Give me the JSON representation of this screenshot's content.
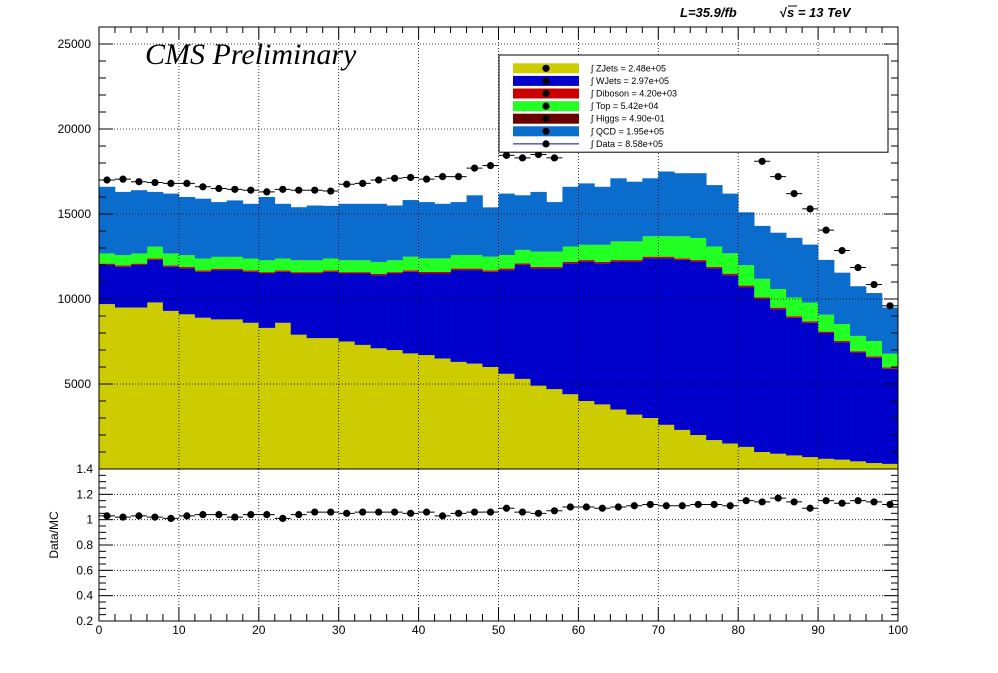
{
  "header": {
    "lumi_label": "L=35.9/fb",
    "sqrt_symbol": "√",
    "energy_label": "s = 13 TeV",
    "cms_label": "CMS Preliminary"
  },
  "colors": {
    "ZJets": "#cccc00",
    "WJets": "#0000cc",
    "Diboson": "#cc0000",
    "Top": "#22ff22",
    "Higgs": "#6b0000",
    "QCD": "#0a6ccc",
    "Data": "#000000"
  },
  "legend": [
    {
      "key": "ZJets",
      "label": "∫ ZJets = 2.48e+05"
    },
    {
      "key": "WJets",
      "label": "∫ WJets = 2.97e+05"
    },
    {
      "key": "Diboson",
      "label": "∫ Diboson = 4.20e+03"
    },
    {
      "key": "Top",
      "label": "∫ Top = 5.42e+04"
    },
    {
      "key": "Higgs",
      "label": "∫ Higgs = 4.90e-01"
    },
    {
      "key": "QCD",
      "label": "∫ QCD = 1.95e+05"
    },
    {
      "key": "Data",
      "label": "∫ Data = 8.58e+05"
    }
  ],
  "chart_data": [
    {
      "type": "bar",
      "stacked": true,
      "ylim": [
        0,
        26000
      ],
      "xlim": [
        0,
        100
      ],
      "yticks": [
        "5000",
        "10000",
        "15000",
        "20000",
        "25000"
      ],
      "grid": true,
      "legend_position": "top-right",
      "bin_width": 2,
      "x": [
        1,
        3,
        5,
        7,
        9,
        11,
        13,
        15,
        17,
        19,
        21,
        23,
        25,
        27,
        29,
        31,
        33,
        35,
        37,
        39,
        41,
        43,
        45,
        47,
        49,
        51,
        53,
        55,
        57,
        59,
        61,
        63,
        65,
        67,
        69,
        71,
        73,
        75,
        77,
        79,
        81,
        83,
        85,
        87,
        89,
        91,
        93,
        95,
        97,
        99
      ],
      "series": [
        {
          "name": "ZJets",
          "values": [
            9700,
            9500,
            9500,
            9800,
            9300,
            9100,
            8900,
            8800,
            8800,
            8600,
            8300,
            8600,
            7900,
            7700,
            7700,
            7500,
            7300,
            7100,
            7000,
            6800,
            6700,
            6500,
            6300,
            6200,
            6000,
            5600,
            5300,
            4900,
            4700,
            4400,
            4000,
            3800,
            3500,
            3200,
            3000,
            2600,
            2300,
            2000,
            1700,
            1500,
            1300,
            1000,
            900,
            800,
            700,
            600,
            550,
            450,
            350,
            300
          ]
        },
        {
          "name": "WJets",
          "values": [
            2300,
            2400,
            2500,
            2500,
            2600,
            2700,
            2700,
            2900,
            2900,
            3000,
            3200,
            3000,
            3600,
            3800,
            3900,
            4000,
            4200,
            4300,
            4500,
            4800,
            4800,
            5000,
            5400,
            5500,
            5600,
            6100,
            6700,
            6900,
            7100,
            7700,
            8200,
            8300,
            8700,
            9000,
            9400,
            9800,
            10000,
            10200,
            10100,
            9900,
            9400,
            9000,
            8500,
            8100,
            7900,
            7400,
            6900,
            6400,
            6200,
            5600
          ]
        },
        {
          "name": "Diboson",
          "values": [
            80,
            80,
            80,
            80,
            80,
            80,
            80,
            80,
            80,
            80,
            80,
            80,
            80,
            80,
            80,
            80,
            80,
            80,
            80,
            90,
            90,
            90,
            90,
            90,
            90,
            90,
            90,
            90,
            90,
            90,
            90,
            90,
            90,
            90,
            90,
            90,
            90,
            90,
            90,
            90,
            90,
            90,
            90,
            90,
            90,
            80,
            80,
            80,
            80,
            80
          ]
        },
        {
          "name": "Top",
          "values": [
            600,
            600,
            600,
            700,
            700,
            700,
            700,
            700,
            700,
            700,
            700,
            700,
            700,
            700,
            700,
            700,
            700,
            700,
            700,
            800,
            800,
            800,
            800,
            800,
            800,
            800,
            800,
            900,
            900,
            900,
            900,
            1000,
            1100,
            1100,
            1200,
            1200,
            1300,
            1300,
            1200,
            1200,
            1200,
            1100,
            1100,
            1100,
            1100,
            1000,
            1000,
            900,
            900,
            800
          ]
        },
        {
          "name": "Higgs",
          "values": [
            0,
            0,
            0,
            0,
            0,
            0,
            0,
            0,
            0,
            0,
            0,
            0,
            0,
            0,
            0,
            0,
            0,
            0,
            0,
            0,
            0,
            0,
            0,
            0,
            0,
            0,
            0,
            0,
            0,
            0,
            0,
            0,
            0,
            0,
            0,
            0,
            0,
            0,
            0,
            0,
            0,
            0,
            0,
            0,
            0,
            0,
            0,
            0,
            0,
            0
          ]
        },
        {
          "name": "QCD",
          "values": [
            3920,
            3720,
            3720,
            3220,
            3520,
            3420,
            3520,
            3220,
            3320,
            3220,
            3720,
            3220,
            3120,
            3220,
            3100,
            3320,
            3320,
            3420,
            3220,
            3330,
            3310,
            3210,
            3110,
            3510,
            2900,
            3610,
            3210,
            3510,
            2910,
            3510,
            3610,
            3410,
            3710,
            3510,
            3410,
            3810,
            3710,
            3810,
            3610,
            3510,
            3110,
            3110,
            3310,
            3510,
            3410,
            3220,
            3020,
            2920,
            2820,
            2720
          ]
        }
      ]
    },
    {
      "type": "scatter",
      "name": "Data",
      "x": [
        1,
        3,
        5,
        7,
        9,
        11,
        13,
        15,
        17,
        19,
        21,
        23,
        25,
        27,
        29,
        31,
        33,
        35,
        37,
        39,
        41,
        43,
        45,
        47,
        49,
        51,
        53,
        55,
        57,
        59,
        61,
        63,
        65,
        67,
        69,
        71,
        73,
        75,
        77,
        79,
        81,
        83,
        85,
        87,
        89,
        91,
        93,
        95,
        97,
        99
      ],
      "values": [
        17000,
        17050,
        16900,
        16850,
        16800,
        16800,
        16600,
        16500,
        16450,
        16400,
        16300,
        16450,
        16400,
        16400,
        16350,
        16750,
        16800,
        17000,
        17100,
        17150,
        17050,
        17200,
        17200,
        17700,
        17850,
        18450,
        18300,
        18500,
        18300,
        19000,
        19300,
        19000,
        19300,
        19300,
        19500,
        20000,
        20000,
        20300,
        19900,
        19400,
        19500,
        18100,
        17200,
        16200,
        15300,
        14050,
        12850,
        11850,
        10850,
        9600
      ]
    },
    {
      "type": "scatter",
      "name": "Data/MC",
      "ylabel": "Data/MC",
      "xlim": [
        0,
        100
      ],
      "ylim": [
        0.2,
        1.4
      ],
      "xticks": [
        "0",
        "10",
        "20",
        "30",
        "40",
        "50",
        "60",
        "70",
        "80",
        "90",
        "100"
      ],
      "yticks": [
        "0.2",
        "0.4",
        "0.6",
        "0.8",
        "1",
        "1.2",
        "1.4"
      ],
      "x": [
        1,
        3,
        5,
        7,
        9,
        11,
        13,
        15,
        17,
        19,
        21,
        23,
        25,
        27,
        29,
        31,
        33,
        35,
        37,
        39,
        41,
        43,
        45,
        47,
        49,
        51,
        53,
        55,
        57,
        59,
        61,
        63,
        65,
        67,
        69,
        71,
        73,
        75,
        77,
        79,
        81,
        83,
        85,
        87,
        89,
        91,
        93,
        95,
        97,
        99
      ],
      "values": [
        1.03,
        1.02,
        1.03,
        1.02,
        1.01,
        1.03,
        1.04,
        1.04,
        1.02,
        1.04,
        1.04,
        1.01,
        1.04,
        1.06,
        1.06,
        1.05,
        1.06,
        1.06,
        1.06,
        1.05,
        1.06,
        1.03,
        1.05,
        1.06,
        1.06,
        1.09,
        1.06,
        1.05,
        1.07,
        1.1,
        1.1,
        1.09,
        1.1,
        1.11,
        1.12,
        1.11,
        1.11,
        1.12,
        1.12,
        1.11,
        1.15,
        1.14,
        1.17,
        1.14,
        1.09,
        1.15,
        1.13,
        1.15,
        1.14,
        1.12
      ]
    }
  ]
}
